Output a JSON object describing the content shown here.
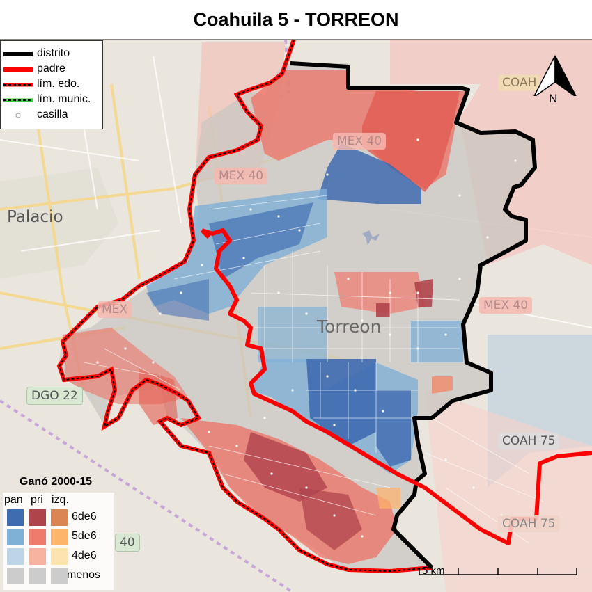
{
  "title": "Coahuila 5 - TORREON",
  "legend": {
    "items": [
      {
        "label": "distrito",
        "style": "thick-black"
      },
      {
        "label": "padre",
        "style": "thick-red"
      },
      {
        "label": "lím. edo.",
        "style": "red-black-dash"
      },
      {
        "label": "lím. munic.",
        "style": "green-black-dash"
      },
      {
        "label": "casilla",
        "style": "point"
      }
    ]
  },
  "north_arrow": {
    "label": "N"
  },
  "place_labels": {
    "palacio": "Palacio",
    "torreon": "Torreon"
  },
  "road_badges": {
    "mex40_a": "MEX 40",
    "mex40_b": "MEX 40",
    "mex40_c": "MEX 40",
    "mex_partial": "MEX",
    "coah_top": "COAH",
    "coah75_a": "COAH 75",
    "coah75_b": "COAH 75",
    "dgo22": "DGO 22",
    "r40": "40"
  },
  "gano_legend": {
    "title": "Ganó 2000-15",
    "columns": [
      "pan",
      "pri",
      "izq."
    ],
    "rows": [
      "6de6",
      "5de6",
      "4de6",
      "menos"
    ],
    "colors": {
      "pan": [
        "#3f6bb0",
        "#7fb0d6",
        "#bcd6e8",
        "#cccccc"
      ],
      "pri": [
        "#b0444d",
        "#ef7b6d",
        "#f7b39f",
        "#cccccc"
      ],
      "izq": [
        "#da8654",
        "#fdb46b",
        "#fde3b0",
        "#cccccc"
      ]
    }
  },
  "scale": {
    "label": "5 km"
  },
  "colors": {
    "district": "#000000",
    "parent": "#ff0000",
    "pan_strong": "#3f6bb0",
    "pri_strong": "#b0444d"
  }
}
